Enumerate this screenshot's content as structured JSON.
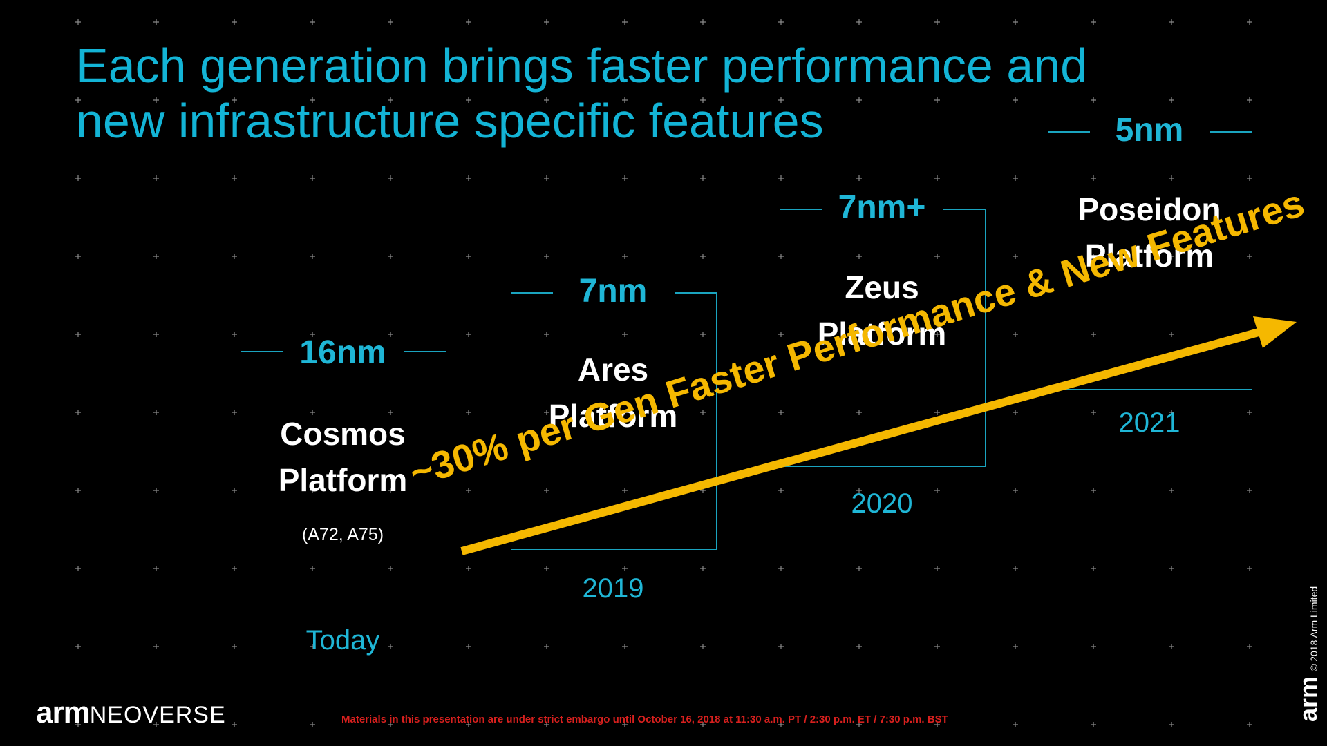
{
  "title_line1": "Each generation brings faster performance and",
  "title_line2": "new infrastructure specific features",
  "platforms": [
    {
      "node": "16nm",
      "name_line1": "Cosmos",
      "name_line2": "Platform",
      "sub": "(A72, A75)",
      "year": "Today"
    },
    {
      "node": "7nm",
      "name_line1": "Ares",
      "name_line2": "Platform",
      "sub": "",
      "year": "2019"
    },
    {
      "node": "7nm+",
      "name_line1": "Zeus",
      "name_line2": "Platform",
      "sub": "",
      "year": "2020"
    },
    {
      "node": "5nm",
      "name_line1": "Poseidon",
      "name_line2": "Platform",
      "sub": "",
      "year": "2021"
    }
  ],
  "arrow_label": "~30% per Gen Faster Performance & New Features",
  "logo_arm": "arm",
  "logo_neoverse": "NEOVERSE",
  "embargo": "Materials in this presentation are under strict embargo until October 16, 2018 at 11:30 a.m. PT / 2:30 p.m. ET / 7:30 p.m. BST",
  "side_logo": "arm",
  "copyright": "© 2018 Arm Limited",
  "colors": {
    "accent": "#13b4d6",
    "arrow": "#f5b800",
    "embargo": "#d8201e"
  }
}
